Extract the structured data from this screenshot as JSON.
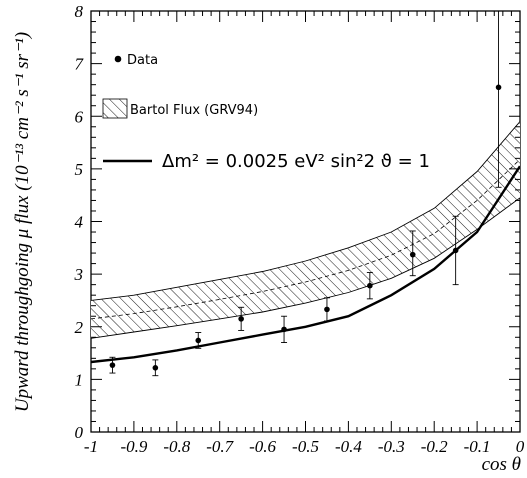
{
  "chart_data": {
    "type": "line",
    "xlabel": "cos θ",
    "ylabel": "Upward throughgoing μ flux (10⁻¹³ cm⁻² s⁻¹ sr⁻¹)",
    "xlim": [
      -1,
      0
    ],
    "ylim": [
      0,
      8
    ],
    "x_ticks": [
      "-1",
      "-0.9",
      "-0.8",
      "-0.7",
      "-0.6",
      "-0.5",
      "-0.4",
      "-0.3",
      "-0.2",
      "-0.1",
      "0"
    ],
    "y_ticks": [
      "0",
      "1",
      "2",
      "3",
      "4",
      "5",
      "6",
      "7",
      "8"
    ],
    "legend": {
      "placement": "top-left",
      "data_label": "Data",
      "band_label": "Bartol Flux (GRV94)",
      "line_label": "Δm² = 0.0025 eV² sin²2 ϑ = 1"
    },
    "series": [
      {
        "name": "Data",
        "kind": "points-with-errors",
        "x": [
          -0.95,
          -0.85,
          -0.75,
          -0.65,
          -0.55,
          -0.45,
          -0.35,
          -0.25,
          -0.15,
          -0.05
        ],
        "y": [
          1.27,
          1.22,
          1.74,
          2.15,
          1.95,
          2.33,
          2.78,
          3.37,
          3.45,
          6.55
        ],
        "err_low": [
          0.15,
          0.15,
          0.15,
          0.22,
          0.25,
          0.22,
          0.25,
          0.4,
          0.65,
          1.9
        ],
        "err_high": [
          0.15,
          0.15,
          0.15,
          0.22,
          0.25,
          0.22,
          0.25,
          0.45,
          0.65,
          1.5
        ]
      },
      {
        "name": "Bartol Flux (GRV94)",
        "kind": "band",
        "x": [
          -1,
          -0.9,
          -0.8,
          -0.7,
          -0.6,
          -0.5,
          -0.4,
          -0.3,
          -0.2,
          -0.1,
          0
        ],
        "lower": [
          1.78,
          1.9,
          2.02,
          2.15,
          2.28,
          2.45,
          2.65,
          2.92,
          3.3,
          3.85,
          4.45
        ],
        "upper": [
          2.5,
          2.6,
          2.75,
          2.9,
          3.05,
          3.25,
          3.5,
          3.8,
          4.25,
          4.95,
          5.9
        ],
        "central": [
          2.15,
          2.25,
          2.38,
          2.52,
          2.67,
          2.85,
          3.07,
          3.36,
          3.77,
          4.4,
          5.18
        ]
      },
      {
        "name": "Δm² = 0.0025 eV² sin²2 ϑ = 1",
        "kind": "line",
        "x": [
          -1,
          -0.9,
          -0.8,
          -0.7,
          -0.6,
          -0.5,
          -0.4,
          -0.3,
          -0.2,
          -0.1,
          0
        ],
        "y": [
          1.33,
          1.42,
          1.55,
          1.7,
          1.85,
          2.0,
          2.2,
          2.6,
          3.1,
          3.8,
          5.05
        ]
      }
    ]
  }
}
